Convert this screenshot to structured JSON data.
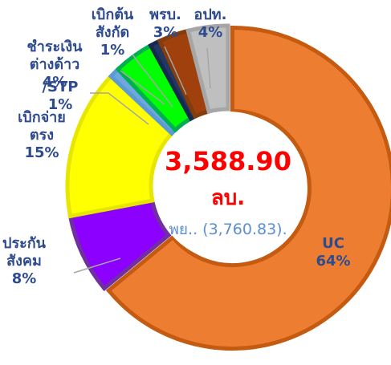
{
  "chart_data": {
    "type": "donut",
    "categories": [
      "UC",
      "ประกันสังคม",
      "เบิกจ่ายตรง",
      "/STP",
      "ชำระเงินต่างด้าว",
      "เบิกต้นสังกัด",
      "พรบ.",
      "อปท."
    ],
    "values": [
      64,
      8,
      15,
      1,
      4,
      1,
      3,
      4
    ],
    "value_labels": [
      "64%",
      "8%",
      "15%",
      "1%",
      "4%",
      "1%",
      "3%",
      "4%"
    ],
    "colors": [
      "#ed7d31",
      "#8b00ff",
      "#ffff00",
      "#6fa8dc",
      "#00ff00",
      "#1f3864",
      "#a0410d",
      "#bfbfbf"
    ],
    "total": "3,588.90",
    "unit": "ลบ.",
    "note": "พย.. (3,760.83)."
  }
}
